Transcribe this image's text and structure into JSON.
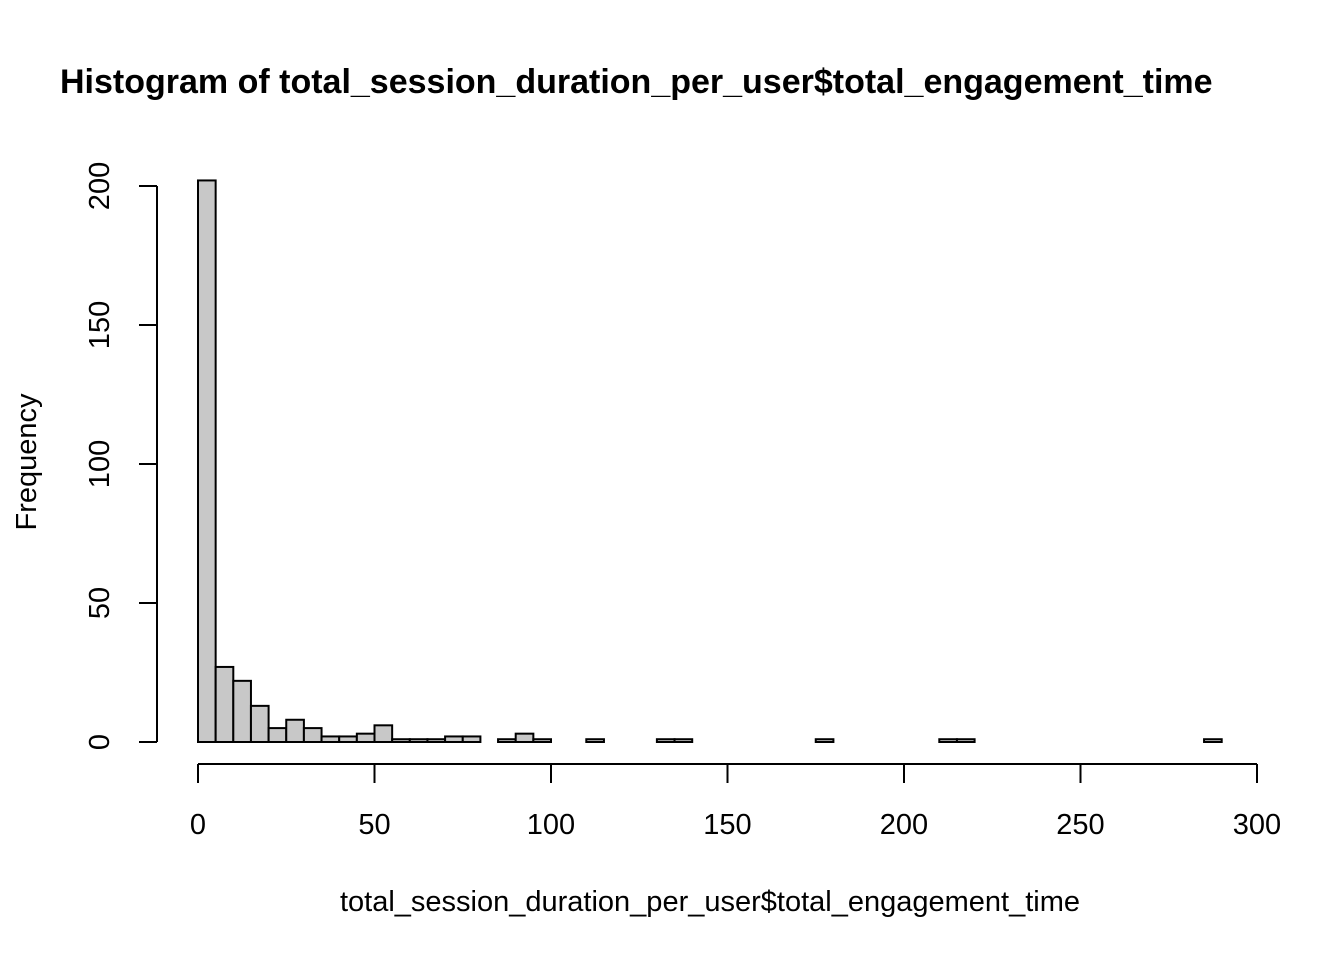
{
  "chart_data": {
    "type": "bar",
    "title": "Histogram of total_session_duration_per_user$total_engagement_time",
    "xlabel": "total_session_duration_per_user$total_engagement_time",
    "ylabel": "Frequency",
    "xlim": [
      0,
      300
    ],
    "ylim": [
      0,
      200
    ],
    "x_ticks": [
      "0",
      "50",
      "100",
      "150",
      "200",
      "250",
      "300"
    ],
    "y_ticks": [
      "0",
      "50",
      "100",
      "150",
      "200"
    ],
    "bin_width": 5,
    "bin_starts": [
      0,
      5,
      10,
      15,
      20,
      25,
      30,
      35,
      40,
      45,
      50,
      55,
      60,
      65,
      70,
      75,
      80,
      85,
      90,
      95,
      100,
      105,
      110,
      115,
      120,
      125,
      130,
      135,
      140,
      145,
      150,
      155,
      160,
      165,
      170,
      175,
      180,
      185,
      190,
      195,
      200,
      205,
      210,
      215,
      220,
      225,
      230,
      235,
      240,
      245,
      250,
      255,
      260,
      265,
      270,
      275,
      280,
      285
    ],
    "values": [
      202,
      27,
      22,
      13,
      5,
      8,
      5,
      2,
      2,
      3,
      6,
      1,
      1,
      1,
      2,
      2,
      0,
      1,
      3,
      1,
      0,
      0,
      1,
      0,
      0,
      0,
      1,
      1,
      0,
      0,
      0,
      0,
      0,
      0,
      0,
      1,
      0,
      0,
      0,
      0,
      0,
      0,
      1,
      1,
      0,
      0,
      0,
      0,
      0,
      0,
      0,
      0,
      0,
      0,
      0,
      0,
      0,
      1
    ],
    "bar_fill": "#c8c8c8",
    "bar_stroke": "#000000",
    "grid": false,
    "legend": "none"
  }
}
